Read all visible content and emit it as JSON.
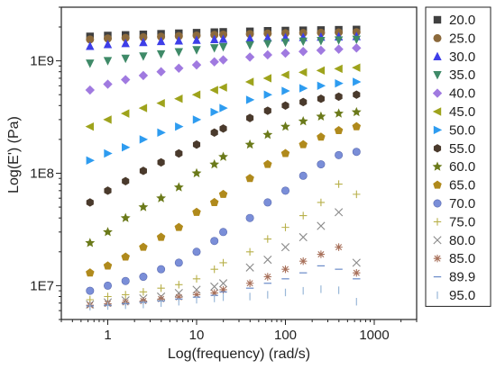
{
  "chart_data": {
    "type": "scatter",
    "xlabel": "Log(frequency) (rad/s)",
    "ylabel": "Log(E') (Pa)",
    "xscale": "log",
    "yscale": "log",
    "xlim": [
      0.3,
      3000
    ],
    "ylim": [
      5000000,
      3000000000
    ],
    "x_ticks": [
      {
        "value": 1,
        "label": "1"
      },
      {
        "value": 10,
        "label": "10"
      },
      {
        "value": 100,
        "label": "100"
      },
      {
        "value": 1000,
        "label": "1000"
      }
    ],
    "y_ticks": [
      {
        "value": 10000000,
        "label": "1E7"
      },
      {
        "value": 100000000,
        "label": "1E8"
      },
      {
        "value": 1000000000,
        "label": "1E9"
      }
    ],
    "legend_position": "right",
    "x": [
      0.631,
      1.0,
      1.585,
      2.512,
      3.981,
      6.31,
      10.0,
      15.85,
      19.95,
      39.81,
      63.1,
      100.0,
      158.5,
      251.2,
      398.1,
      631.0
    ],
    "series": [
      {
        "name": "20.0",
        "marker": "square",
        "color": "#404040",
        "values": [
          1650000000,
          1680000000,
          1700000000,
          1720000000,
          1740000000,
          1760000000,
          1780000000,
          1800000000,
          1810000000,
          1830000000,
          1850000000,
          1860000000,
          1870000000,
          1880000000,
          1890000000,
          1900000000
        ]
      },
      {
        "name": "25.0",
        "marker": "circle",
        "color": "#8c6a3c",
        "values": [
          1550000000,
          1580000000,
          1600000000,
          1620000000,
          1640000000,
          1660000000,
          1680000000,
          1700000000,
          1710000000,
          1730000000,
          1750000000,
          1760000000,
          1770000000,
          1780000000,
          1790000000,
          1800000000
        ]
      },
      {
        "name": "30.0",
        "marker": "triangle-up",
        "color": "#3e3ee8",
        "values": [
          1350000000,
          1400000000,
          1430000000,
          1460000000,
          1490000000,
          1510000000,
          1530000000,
          1550000000,
          1560000000,
          1580000000,
          1600000000,
          1610000000,
          1620000000,
          1630000000,
          1640000000,
          1650000000
        ]
      },
      {
        "name": "35.0",
        "marker": "triangle-down",
        "color": "#3f8a68",
        "values": [
          950000000,
          1000000000,
          1050000000,
          1100000000,
          1150000000,
          1200000000,
          1250000000,
          1300000000,
          1330000000,
          1380000000,
          1420000000,
          1460000000,
          1490000000,
          1510000000,
          1530000000,
          1550000000
        ]
      },
      {
        "name": "40.0",
        "marker": "diamond",
        "color": "#a07ae0",
        "values": [
          550000000,
          620000000,
          680000000,
          740000000,
          800000000,
          860000000,
          920000000,
          980000000,
          1020000000,
          1080000000,
          1130000000,
          1170000000,
          1210000000,
          1240000000,
          1270000000,
          1300000000
        ]
      },
      {
        "name": "45.0",
        "marker": "triangle-left",
        "color": "#9ea31c",
        "values": [
          260000000,
          300000000,
          340000000,
          380000000,
          420000000,
          460000000,
          500000000,
          550000000,
          580000000,
          650000000,
          700000000,
          750000000,
          790000000,
          820000000,
          850000000,
          870000000
        ]
      },
      {
        "name": "50.0",
        "marker": "triangle-right",
        "color": "#2e9cf0",
        "values": [
          130000000,
          150000000,
          170000000,
          200000000,
          230000000,
          260000000,
          300000000,
          350000000,
          380000000,
          450000000,
          500000000,
          540000000,
          570000000,
          600000000,
          630000000,
          650000000
        ]
      },
      {
        "name": "55.0",
        "marker": "hexagon",
        "color": "#4a3a2c",
        "values": [
          55000000,
          70000000,
          85000000,
          105000000,
          125000000,
          150000000,
          180000000,
          230000000,
          250000000,
          310000000,
          360000000,
          400000000,
          430000000,
          460000000,
          480000000,
          500000000
        ]
      },
      {
        "name": "60.0",
        "marker": "star",
        "color": "#6b7a1a",
        "values": [
          24000000,
          30000000,
          40000000,
          50000000,
          60000000,
          75000000,
          100000000,
          120000000,
          140000000,
          180000000,
          220000000,
          260000000,
          290000000,
          320000000,
          340000000,
          350000000
        ]
      },
      {
        "name": "65.0",
        "marker": "pentagon",
        "color": "#b08a1c",
        "values": [
          13000000,
          15000000,
          18000000,
          22000000,
          27000000,
          33000000,
          45000000,
          55000000,
          65000000,
          90000000,
          120000000,
          150000000,
          180000000,
          210000000,
          240000000,
          260000000
        ]
      },
      {
        "name": "70.0",
        "marker": "sphere",
        "color": "#7a8ed8",
        "values": [
          9000000,
          10000000,
          11000000,
          12000000,
          14000000,
          16000000,
          20000000,
          25000000,
          30000000,
          40000000,
          55000000,
          70000000,
          95000000,
          120000000,
          145000000,
          155000000
        ]
      },
      {
        "name": "75.0",
        "marker": "plus",
        "color": "#b8b04a",
        "values": [
          7500000,
          8000000,
          8300000,
          8800000,
          9500000,
          10200000,
          11500000,
          14000000,
          16000000,
          20000000,
          26000000,
          33000000,
          42000000,
          55000000,
          80000000,
          65000000
        ]
      },
      {
        "name": "80.0",
        "marker": "x",
        "color": "#8a8a8a",
        "values": [
          6800000,
          7100000,
          7400000,
          7700000,
          8000000,
          8600000,
          9200000,
          9800000,
          10500000,
          14500000,
          17000000,
          22000000,
          27000000,
          34000000,
          45000000,
          16000000
        ]
      },
      {
        "name": "85.0",
        "marker": "asterisk",
        "color": "#a8705a",
        "values": [
          6700000,
          6900000,
          7100000,
          7300000,
          7600000,
          7900000,
          8300000,
          8600000,
          9200000,
          10500000,
          12000000,
          14000000,
          16500000,
          19000000,
          22000000,
          13000000
        ]
      },
      {
        "name": "89.9",
        "marker": "hline",
        "color": "#6a8ac8",
        "values": [
          6600000,
          6700000,
          6900000,
          7100000,
          7300000,
          7600000,
          7900000,
          8200000,
          8800000,
          9500000,
          10500000,
          11500000,
          13000000,
          15000000,
          14000000,
          11500000
        ]
      },
      {
        "name": "95.0",
        "marker": "vline",
        "color": "#9ab8d8",
        "values": [
          6500000,
          6600000,
          6700000,
          6800000,
          7000000,
          7200000,
          7500000,
          7700000,
          7900000,
          8000000,
          8300000,
          8700000,
          9000000,
          9300000,
          9100000,
          7200000
        ]
      }
    ]
  }
}
